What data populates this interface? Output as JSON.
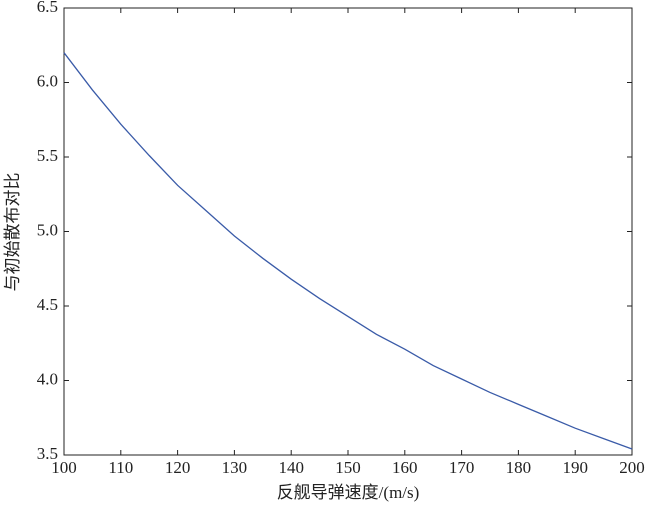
{
  "chart_data": {
    "type": "line",
    "x_label": "反舰导弹速度/(m/s)",
    "y_label": "与初始散布对比",
    "x": [
      100,
      105,
      110,
      115,
      120,
      125,
      130,
      135,
      140,
      145,
      150,
      155,
      160,
      165,
      170,
      175,
      180,
      185,
      190,
      195,
      200
    ],
    "series": [
      {
        "color": "#3a5ba8",
        "values": [
          6.2,
          5.95,
          5.72,
          5.51,
          5.31,
          5.14,
          4.97,
          4.82,
          4.68,
          4.55,
          4.43,
          4.31,
          4.21,
          4.1,
          4.01,
          3.92,
          3.84,
          3.76,
          3.68,
          3.61,
          3.54
        ]
      }
    ],
    "xlim": [
      100,
      200
    ],
    "xticks": [
      100,
      110,
      120,
      130,
      140,
      150,
      160,
      170,
      180,
      190,
      200
    ],
    "ylim": [
      3.5,
      6.5
    ],
    "yticks": [
      3.5,
      {
        "value": 4,
        "label": "4.0"
      },
      4.5,
      {
        "value": 5,
        "label": "5.0"
      },
      5.5,
      {
        "value": 6,
        "label": "6.0"
      },
      6.5
    ],
    "grid": false
  }
}
